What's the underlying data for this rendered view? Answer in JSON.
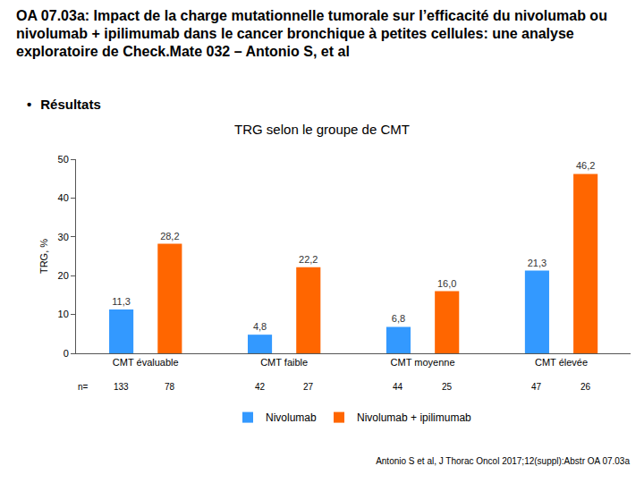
{
  "header": {
    "title": "OA 07.03a: Impact de la charge mutationnelle tumorale sur l’efficacité du nivolumab ou nivolumab + ipilimumab dans le cancer bronchique à petites cellules: une analyse exploratoire de Check.Mate 032 – Antonio S, et al",
    "bullet": "Résultats"
  },
  "chart_data": {
    "type": "bar",
    "title": "TRG selon le groupe de CMT",
    "y_label": "TRG, %",
    "categories": [
      "CMT évaluable",
      "CMT faible",
      "CMT moyenne",
      "CMT élevée"
    ],
    "series": [
      {
        "name": "Nivolumab",
        "color": "#3399ff",
        "values": [
          11.3,
          4.8,
          6.8,
          21.3
        ],
        "value_labels": [
          "11,3",
          "4,8",
          "6,8",
          "21,3"
        ],
        "n": [
          133,
          42,
          44,
          47
        ]
      },
      {
        "name": "Nivolumab + ipilimumab",
        "color": "#ff6600",
        "values": [
          28.2,
          22.2,
          16.0,
          46.2
        ],
        "value_labels": [
          "28,2",
          "22,2",
          "16,0",
          "46,2"
        ],
        "n": [
          78,
          27,
          25,
          26
        ]
      }
    ],
    "n_label": "n=",
    "ylim": [
      0,
      50
    ],
    "yticks": [
      0,
      10,
      20,
      30,
      40,
      50
    ],
    "grid": false,
    "data_labels": true,
    "legend": "bottom"
  },
  "footnote": "Antonio S et al, J Thorac Oncol 2017;12(suppl):Abstr OA 07.03a"
}
